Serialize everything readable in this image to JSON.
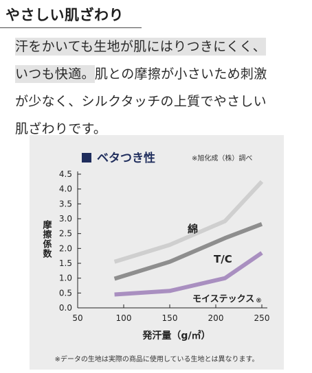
{
  "heading": "やさしい肌ざわり",
  "body": {
    "line1": "汗をかいても生地が肌にはりつきにくく、",
    "line2_highlight": "いつも快適。",
    "line2_rest": "肌との摩擦が小さいため刺激",
    "line3": "が少なく、シルクタッチの上質でやさしい",
    "line4": "肌ざわりです。"
  },
  "colors": {
    "panel_bg": "#ececec",
    "title_square": "#1f2d5c",
    "cotton": "#cfcfcf",
    "tc": "#8e8e8e",
    "moistex": "#a98fc0"
  },
  "chart_data": {
    "type": "line",
    "title": "ベタつき性",
    "source_note": "※旭化成（株）調べ",
    "xlabel": "発汗量（g/㎡）",
    "ylabel": "摩擦係数",
    "xlim": [
      50,
      250
    ],
    "ylim": [
      0.0,
      4.5
    ],
    "xticks": [
      "50",
      "100",
      "150",
      "200",
      "250"
    ],
    "yticks": [
      "0.0",
      "0.5",
      "1.0",
      "1.5",
      "2.0",
      "2.5",
      "3.0",
      "3.5",
      "4.0",
      "4.5"
    ],
    "series": [
      {
        "name": "綿",
        "x": [
          90,
          150,
          210,
          250
        ],
        "y": [
          1.55,
          2.12,
          2.92,
          4.25
        ]
      },
      {
        "name": "T/C",
        "x": [
          90,
          150,
          210,
          250
        ],
        "y": [
          0.98,
          1.55,
          2.35,
          2.82
        ]
      },
      {
        "name": "モイステックス",
        "mark": "®",
        "x": [
          90,
          150,
          210,
          250
        ],
        "y": [
          0.45,
          0.57,
          1.0,
          1.85
        ]
      }
    ],
    "footnote": "※データの生地は実際の商品に使用している生地とは異なります。"
  }
}
